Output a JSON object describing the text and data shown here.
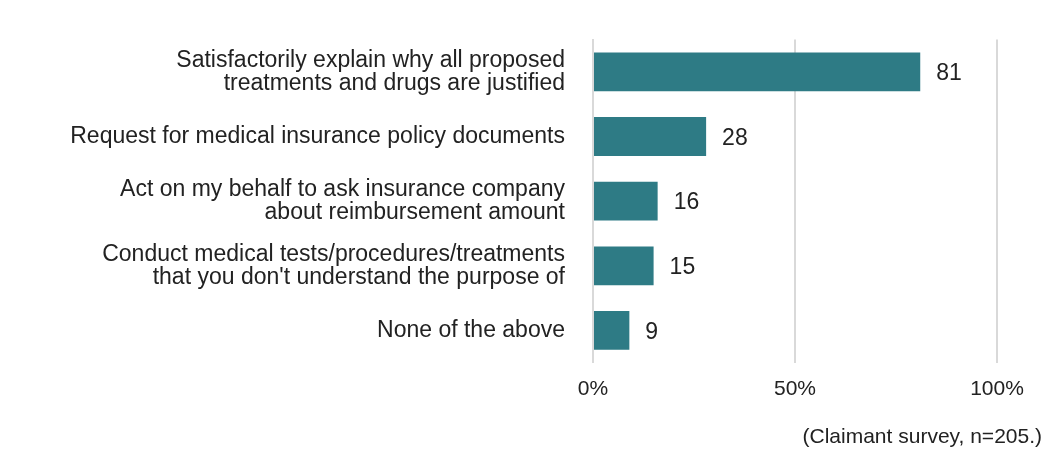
{
  "chart_data": {
    "type": "bar",
    "orientation": "horizontal",
    "categories": [
      "Satisfactorily explain why all proposed\ntreatments and drugs are justified",
      "Request for medical insurance policy documents",
      "Act on my behalf to ask insurance company\nabout reimbursement amount",
      "Conduct medical tests/procedures/treatments\nthat you don't understand the purpose of",
      "None of the above"
    ],
    "values": [
      81,
      28,
      16,
      15,
      9
    ],
    "color": "#2e7b85",
    "xlim": [
      0,
      100
    ],
    "xticks": [
      {
        "value": 0,
        "label": "0%"
      },
      {
        "value": 50,
        "label": "50%"
      },
      {
        "value": 100,
        "label": "100%"
      }
    ],
    "grid": "x",
    "legend": false,
    "data_labels": true,
    "annotations": [
      "(Claimant survey, n=205.)"
    ]
  }
}
